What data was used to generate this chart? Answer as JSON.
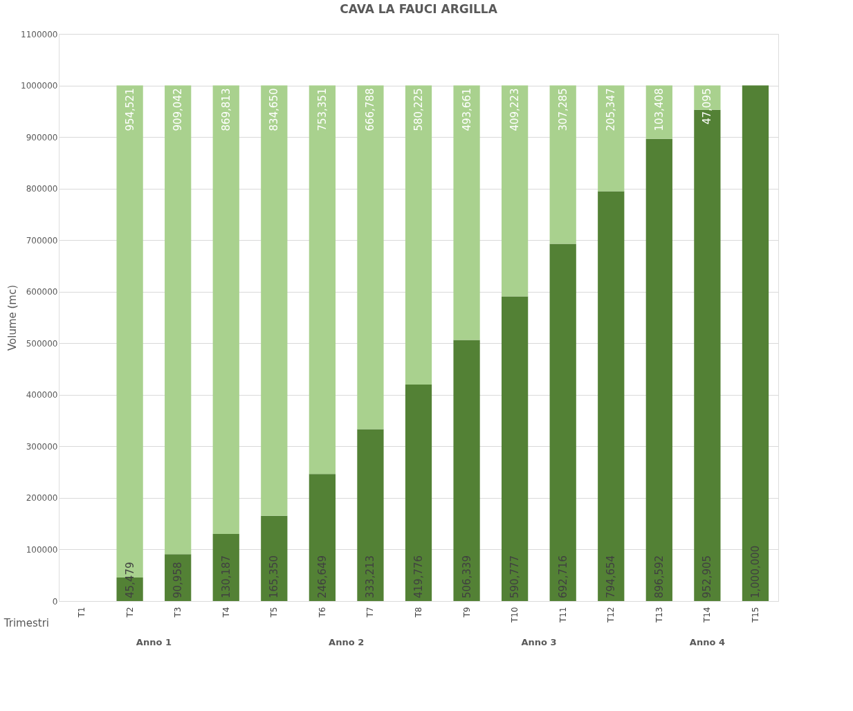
{
  "chart_data": {
    "type": "bar",
    "title": "CAVA LA FAUCI ARGILLA",
    "xlabel": "Trimestri",
    "ylabel": "Volume (mc)",
    "categories": [
      "T1",
      "T2",
      "T3",
      "T4",
      "T5",
      "T6",
      "T7",
      "T8",
      "T9",
      "T10",
      "T11",
      "T12",
      "T13",
      "T14",
      "T15"
    ],
    "stacked": true,
    "series": [
      {
        "color": "#538135",
        "values": [
          null,
          45479,
          90958,
          130187,
          165350,
          246649,
          333213,
          419776,
          506339,
          590777,
          692716,
          794654,
          896592,
          952905,
          1000000
        ],
        "value_labels": [
          null,
          "45,479",
          "90,958",
          "130,187",
          "165,350",
          "246,649",
          "333,213",
          "419,776",
          "506,339",
          "590,777",
          "692,716",
          "794,654",
          "896,592",
          "952,905",
          "1,000,000"
        ]
      },
      {
        "color": "#a9d18e",
        "values": [
          null,
          954521,
          909042,
          869813,
          834650,
          753351,
          666788,
          580225,
          493661,
          409223,
          307285,
          205347,
          103408,
          47095,
          null
        ],
        "value_labels": [
          null,
          "954,521",
          "909,042",
          "869,813",
          "834,650",
          "753,351",
          "666,788",
          "580,225",
          "493,661",
          "409,223",
          "307,285",
          "205,347",
          "103,408",
          "47,095",
          null
        ]
      }
    ],
    "ylim": [
      0,
      1100000
    ],
    "yticks": [
      0,
      100000,
      200000,
      300000,
      400000,
      500000,
      600000,
      700000,
      800000,
      900000,
      1000000,
      1100000
    ],
    "grid": "y",
    "annotations": [
      "Anno 1",
      "Anno 2",
      "Anno 3",
      "Anno 4"
    ]
  }
}
